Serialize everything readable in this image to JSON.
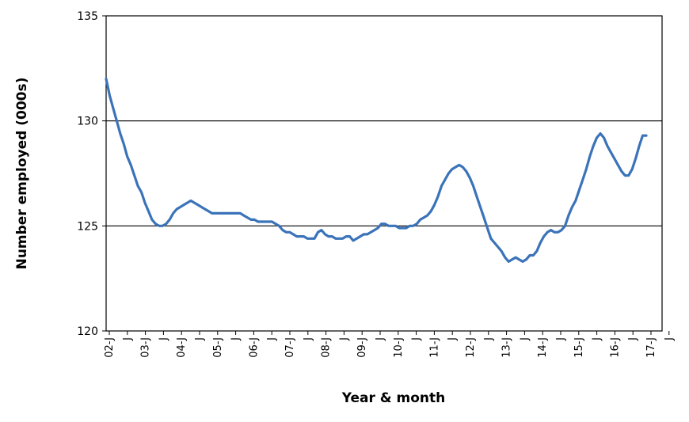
{
  "chart_data": {
    "type": "line",
    "xlabel": "Year & month",
    "ylabel": "Number employed (000s)",
    "ylim": [
      120,
      135
    ],
    "yticks": [
      120,
      125,
      130,
      135
    ],
    "gridlines": [
      125,
      130
    ],
    "x_tick_labels": [
      "02-J",
      "J",
      "03-J",
      "J",
      "04-J",
      "J",
      "05-J",
      "J",
      "06-J",
      "J",
      "07-J",
      "J",
      "08-J",
      "J",
      "09-J",
      "J",
      "10-J",
      "J",
      "11-J",
      "J",
      "12-J",
      "J",
      "13-J",
      "J",
      "14-J",
      "J",
      "15-J",
      "J",
      "16-J",
      "J",
      "17-J",
      "J"
    ],
    "line_color": "#3b73b9",
    "series": [
      {
        "values": [
          132.0,
          131.2,
          130.6,
          130.0,
          129.4,
          128.9,
          128.3,
          127.9,
          127.4,
          126.9,
          126.6,
          126.1,
          125.7,
          125.3,
          125.1,
          125.0,
          125.0,
          125.1,
          125.3,
          125.6,
          125.8,
          125.9,
          126.0,
          126.1,
          126.2,
          126.1,
          126.0,
          125.9,
          125.8,
          125.7,
          125.6,
          125.6,
          125.6,
          125.6,
          125.6,
          125.6,
          125.6,
          125.6,
          125.6,
          125.5,
          125.4,
          125.3,
          125.3,
          125.2,
          125.2,
          125.2,
          125.2,
          125.2,
          125.1,
          125.0,
          124.8,
          124.7,
          124.7,
          124.6,
          124.5,
          124.5,
          124.5,
          124.4,
          124.4,
          124.4,
          124.7,
          124.8,
          124.6,
          124.5,
          124.5,
          124.4,
          124.4,
          124.4,
          124.5,
          124.5,
          124.3,
          124.4,
          124.5,
          124.6,
          124.6,
          124.7,
          124.8,
          124.9,
          125.1,
          125.1,
          125.0,
          125.0,
          125.0,
          124.9,
          124.9,
          124.9,
          125.0,
          125.0,
          125.1,
          125.3,
          125.4,
          125.5,
          125.7,
          126.0,
          126.4,
          126.9,
          127.2,
          127.5,
          127.7,
          127.8,
          127.9,
          127.8,
          127.6,
          127.3,
          126.9,
          126.4,
          125.9,
          125.4,
          124.9,
          124.4,
          124.2,
          124.0,
          123.8,
          123.5,
          123.3,
          123.4,
          123.5,
          123.4,
          123.3,
          123.4,
          123.6,
          123.6,
          123.8,
          124.2,
          124.5,
          124.7,
          124.8,
          124.7,
          124.7,
          124.8,
          125.0,
          125.5,
          125.9,
          126.2,
          126.7,
          127.2,
          127.7,
          128.3,
          128.8,
          129.2,
          129.4,
          129.2,
          128.8,
          128.5,
          128.2,
          127.9,
          127.6,
          127.4,
          127.4,
          127.7,
          128.2,
          128.8,
          129.3,
          129.3
        ]
      }
    ]
  }
}
